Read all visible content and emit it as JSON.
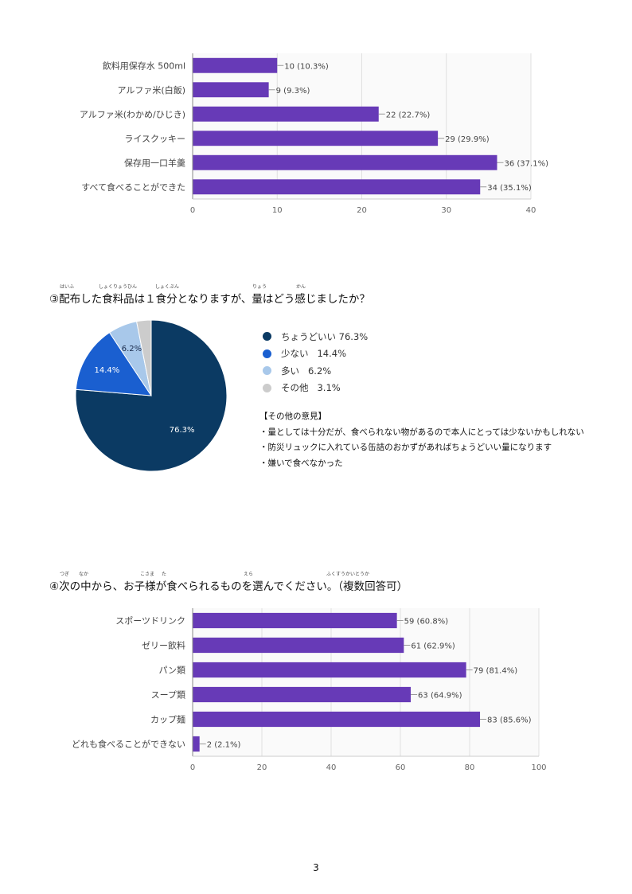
{
  "chart_data": [
    {
      "type": "bar",
      "orientation": "horizontal",
      "categories": [
        "飲料用保存水 500ml",
        "アルファ米(白飯)",
        "アルファ米(わかめ/ひじき)",
        "ライスクッキー",
        "保存用一口羊羹",
        "すべて食べることができた"
      ],
      "values": [
        10,
        9,
        22,
        29,
        36,
        34
      ],
      "data_labels": [
        "10 (10.3%)",
        "9 (9.3%)",
        "22 (22.7%)",
        "29 (29.9%)",
        "36 (37.1%)",
        "34 (35.1%)"
      ],
      "xlim": [
        0,
        40
      ],
      "ticks": [
        "0",
        "10",
        "20",
        "30",
        "40"
      ],
      "grid": true,
      "color": "#673ab7"
    },
    {
      "type": "pie",
      "title": "③配布した食料品は１食分となりますが、量はどう感じましたか？",
      "ruby": [
        "はいふ",
        "しょくりょうひん",
        "しょくぶん",
        "りょう",
        "かん"
      ],
      "labels": [
        "ちょうどいい",
        "少ない",
        "多い",
        "その他"
      ],
      "values": [
        76.3,
        14.4,
        6.2,
        3.1
      ],
      "legend_values": [
        "76.3%",
        "14.4%",
        "6.2%",
        "3.1%"
      ],
      "slice_labels": [
        "76.3%",
        "14.4%",
        "6.2%",
        ""
      ],
      "colors": [
        "#0b3a63",
        "#1a5fd0",
        "#a8c8ea",
        "#cccccc"
      ],
      "legend_position": "right"
    },
    {
      "type": "bar",
      "orientation": "horizontal",
      "title": "④次の中から、お子様が食べられるものを選んでください。（複数回答可）",
      "ruby": [
        "つぎ",
        "なか",
        "こさま",
        "た",
        "えら",
        "ふくすうかいとうか"
      ],
      "categories": [
        "スポーツドリンク",
        "ゼリー飲料",
        "パン類",
        "スープ類",
        "カップ麺",
        "どれも食べることができない"
      ],
      "values": [
        59,
        61,
        79,
        63,
        83,
        2
      ],
      "data_labels": [
        "59 (60.8%)",
        "61 (62.9%)",
        "79 (81.4%)",
        "63 (64.9%)",
        "83 (85.6%)",
        "2 (2.1%)"
      ],
      "xlim": [
        0,
        100
      ],
      "ticks": [
        "0",
        "20",
        "40",
        "60",
        "80",
        "100"
      ],
      "grid": true,
      "color": "#673ab7"
    }
  ],
  "comments": {
    "heading": "【その他の意見】",
    "items": [
      "・量としては十分だが、食べられない物があるので本人にとっては少ないかもしれない",
      "・防災リュックに入れている缶詰のおかずがあればちょうどいい量になります",
      "・嫌いで食べなかった"
    ]
  },
  "page_number": "3"
}
